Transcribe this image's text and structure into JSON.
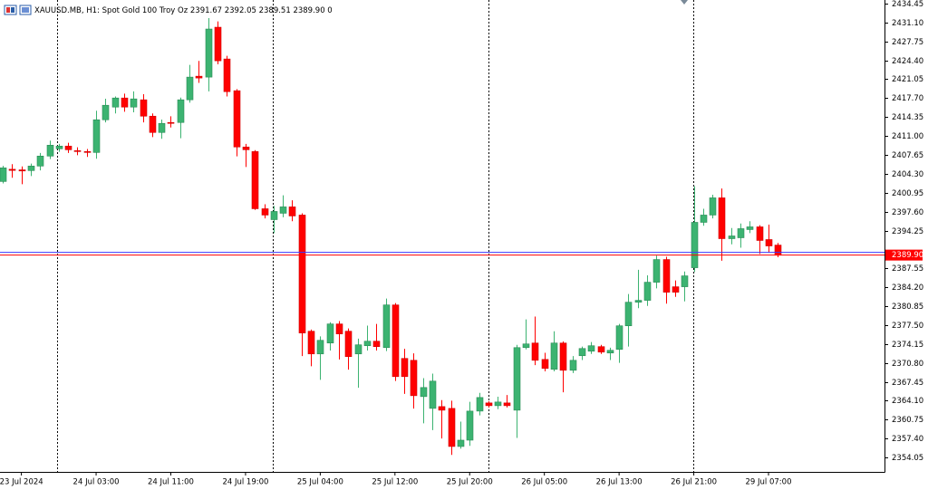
{
  "chart_data": {
    "type": "candlestick",
    "header": "XAUUSD.MB, H1:  Spot Gold 100 Troy Oz  2391.67 2392.05 2389.51 2389.90  0",
    "categories": [
      null,
      null,
      "23 Jul 2024",
      null,
      null,
      null,
      null,
      null,
      null,
      null,
      "24 Jul 03:00",
      null,
      null,
      null,
      null,
      null,
      null,
      null,
      "24 Jul 11:00",
      null,
      null,
      null,
      null,
      null,
      null,
      null,
      "24 Jul 19:00",
      null,
      null,
      null,
      null,
      null,
      null,
      null,
      "25 Jul 04:00",
      null,
      null,
      null,
      null,
      null,
      null,
      null,
      "25 Jul 12:00",
      null,
      null,
      null,
      null,
      null,
      null,
      null,
      "25 Jul 20:00",
      null,
      null,
      null,
      null,
      null,
      null,
      null,
      "26 Jul 05:00",
      null,
      null,
      null,
      null,
      null,
      null,
      null,
      "26 Jul 13:00",
      null,
      null,
      null,
      null,
      null,
      null,
      null,
      "26 Jul 21:00",
      null,
      null,
      null,
      null,
      null,
      null,
      null,
      "29 Jul 07:00",
      null
    ],
    "open": [
      2402.94,
      2405.1,
      2405.0,
      2404.87,
      2405.67,
      2407.44,
      2408.73,
      2409.21,
      2408.4,
      2408.24,
      2408.08,
      2413.87,
      2416.12,
      2417.73,
      2416.12,
      2417.41,
      2414.51,
      2411.62,
      2413.39,
      2413.39,
      2417.41,
      2421.59,
      2421.43,
      2430.27,
      2424.64,
      2419.02,
      2409.05,
      2408.24,
      2398.11,
      2396.18,
      2397.31,
      2398.44,
      2396.99,
      2376.41,
      2372.39,
      2374.32,
      2377.7,
      2376.41,
      2372.39,
      2373.84,
      2374.64,
      2373.51,
      2381.07,
      2371.59,
      2371.26,
      2364.83,
      2362.74,
      2363.06,
      2362.74,
      2355.99,
      2357.11,
      2362.26,
      2363.71,
      2363.22,
      2363.71,
      2362.42,
      2373.51,
      2374.32,
      2371.42,
      2369.66,
      2374.32,
      2369.49,
      2372.07,
      2372.87,
      2373.68,
      2372.55,
      2373.19,
      2377.37,
      2381.55,
      2381.88,
      2385.09,
      2389.11,
      2384.29,
      2384.29,
      2387.66,
      2395.7,
      2396.99,
      2400.04,
      2392.81,
      2392.97,
      2394.42,
      2394.9,
      2392.65,
      2391.67
    ],
    "high": [
      2405.7,
      2406.0,
      2405.6,
      2406.1,
      2408.0,
      2410.17,
      2409.6,
      2409.8,
      2409.0,
      2408.7,
      2415.48,
      2417.6,
      2418.0,
      2418.5,
      2418.9,
      2418.4,
      2415.0,
      2413.9,
      2414.5,
      2417.8,
      2423.6,
      2424.3,
      2431.88,
      2431.3,
      2425.2,
      2419.3,
      2409.6,
      2408.5,
      2398.9,
      2398.6,
      2400.5,
      2399.6,
      2397.3,
      2376.7,
      2375.5,
      2378.0,
      2378.2,
      2376.9,
      2375.1,
      2377.4,
      2377.7,
      2382.2,
      2381.4,
      2373.3,
      2372.5,
      2368.1,
      2368.9,
      2364.2,
      2364.1,
      2360.4,
      2363.9,
      2365.5,
      2364.0,
      2364.8,
      2365.1,
      2374.0,
      2378.5,
      2379.0,
      2372.6,
      2376.4,
      2374.6,
      2372.0,
      2373.7,
      2374.5,
      2374.0,
      2373.5,
      2377.7,
      2383.0,
      2387.3,
      2386.3,
      2389.8,
      2389.6,
      2385.4,
      2387.0,
      2402.1,
      2398.1,
      2400.6,
      2401.7,
      2394.7,
      2395.5,
      2395.9,
      2395.2,
      2395.3,
      2392.05
    ],
    "low": [
      2402.6,
      2403.6,
      2402.45,
      2403.9,
      2404.9,
      2406.9,
      2408.2,
      2408.0,
      2407.6,
      2407.3,
      2406.96,
      2413.4,
      2415.0,
      2415.3,
      2415.2,
      2413.4,
      2410.8,
      2410.5,
      2412.5,
      2410.6,
      2416.9,
      2420.4,
      2418.9,
      2423.7,
      2418.0,
      2407.4,
      2405.5,
      2397.9,
      2396.4,
      2393.8,
      2396.6,
      2395.9,
      2372.0,
      2370.2,
      2367.8,
      2373.0,
      2371.4,
      2369.6,
      2366.4,
      2373.0,
      2373.0,
      2372.9,
      2367.6,
      2365.3,
      2362.7,
      2360.1,
      2358.9,
      2357.4,
      2354.5,
      2355.6,
      2356.1,
      2361.5,
      2362.9,
      2362.6,
      2362.9,
      2357.5,
      2373.2,
      2370.4,
      2369.3,
      2369.3,
      2365.6,
      2369.0,
      2371.3,
      2372.4,
      2372.4,
      2371.3,
      2370.8,
      2373.7,
      2380.5,
      2380.9,
      2384.0,
      2381.3,
      2382.5,
      2381.7,
      2386.9,
      2395.1,
      2396.4,
      2388.9,
      2391.8,
      2391.2,
      2393.8,
      2390.1,
      2390.3,
      2389.51
    ],
    "close": [
      2405.35,
      2404.9,
      2404.8,
      2405.67,
      2407.44,
      2409.37,
      2409.21,
      2408.56,
      2408.24,
      2408.08,
      2413.87,
      2416.44,
      2417.73,
      2416.12,
      2417.57,
      2414.51,
      2411.62,
      2413.23,
      2413.23,
      2417.41,
      2421.43,
      2421.27,
      2429.95,
      2424.32,
      2418.85,
      2409.05,
      2408.56,
      2398.11,
      2396.99,
      2397.63,
      2398.44,
      2396.83,
      2376.09,
      2372.39,
      2374.8,
      2377.7,
      2375.93,
      2371.91,
      2374.0,
      2374.64,
      2373.68,
      2381.07,
      2368.37,
      2368.37,
      2364.99,
      2366.44,
      2367.57,
      2362.42,
      2355.99,
      2357.11,
      2362.26,
      2364.67,
      2363.22,
      2363.87,
      2363.22,
      2373.51,
      2374.16,
      2371.26,
      2369.82,
      2374.32,
      2369.49,
      2371.26,
      2373.35,
      2373.84,
      2372.71,
      2373.03,
      2377.37,
      2381.55,
      2381.88,
      2385.09,
      2389.11,
      2383.32,
      2383.32,
      2386.22,
      2395.7,
      2396.99,
      2400.04,
      2392.81,
      2393.29,
      2394.58,
      2394.9,
      2392.49,
      2391.52,
      2389.9
    ],
    "ylim": [
      2351.49,
      2435.09
    ],
    "yticks": [
      2434.45,
      {
        "value": 2431.1,
        "label": "2431.10"
      },
      2427.75,
      {
        "value": 2424.4,
        "label": "2424.40"
      },
      2421.05,
      {
        "value": 2417.7,
        "label": "2417.70"
      },
      2414.35,
      {
        "value": 2411,
        "label": "2411.00"
      },
      2407.65,
      {
        "value": 2404.3,
        "label": "2404.30"
      },
      2400.95,
      {
        "value": 2397.6,
        "label": "2397.60"
      },
      2394.25,
      2387.55,
      {
        "value": 2384.2,
        "label": "2384.20"
      },
      2380.85,
      {
        "value": 2377.5,
        "label": "2377.50"
      },
      2374.15,
      {
        "value": 2370.8,
        "label": "2370.80"
      },
      2367.45,
      {
        "value": 2364.1,
        "label": "2364.10"
      },
      2360.75,
      {
        "value": 2357.4,
        "label": "2357.40"
      },
      2354.05
    ],
    "up_color": "#3cb371",
    "down_color": "#ff0000",
    "ask_line": 2390.39,
    "bid_line": {
      "value": 2389.9,
      "label": "2389.90"
    }
  }
}
